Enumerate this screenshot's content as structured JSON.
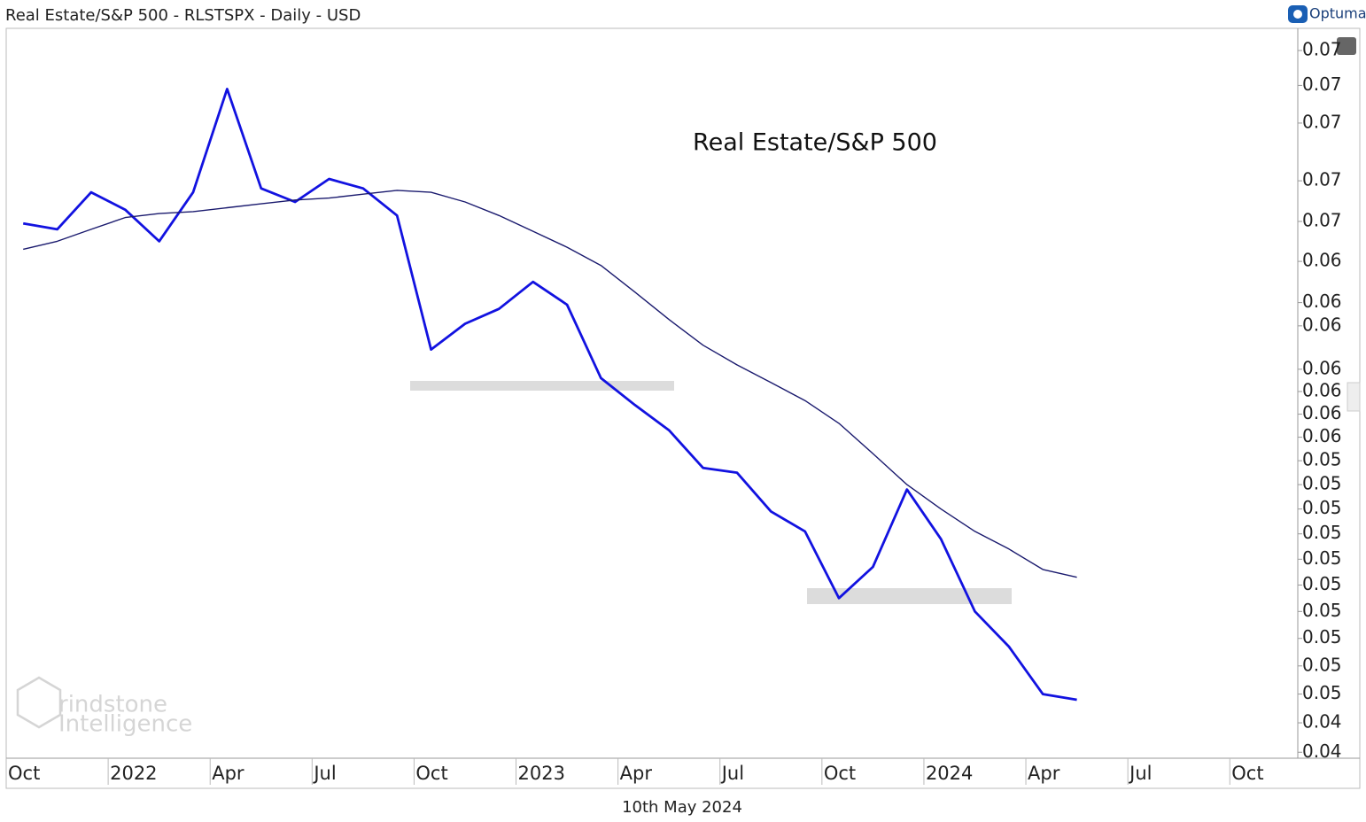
{
  "header": {
    "title": "Real Estate/S&P 500 - RLSTSPX - Daily - USD",
    "brand": "Optuma"
  },
  "footer": {
    "date": "10th May 2024"
  },
  "watermark": {
    "line1": "rindstone",
    "line2": "Intelligence"
  },
  "chart_data": {
    "type": "line",
    "annotation": "Real Estate/S&P 500",
    "log_scale": true,
    "grid": false,
    "x": [
      "2021-10",
      "2021-11",
      "2021-12",
      "2022-01",
      "2022-02",
      "2022-03",
      "2022-04",
      "2022-05",
      "2022-06",
      "2022-07",
      "2022-08",
      "2022-09",
      "2022-10",
      "2022-11",
      "2022-12",
      "2023-01",
      "2023-02",
      "2023-03",
      "2023-04",
      "2023-05",
      "2023-06",
      "2023-07",
      "2023-08",
      "2023-09",
      "2023-10",
      "2023-11",
      "2023-12",
      "2024-01",
      "2024-02",
      "2024-03",
      "2024-04",
      "2024-05"
    ],
    "series": [
      {
        "color": "#1212e0",
        "values": [
          0.065,
          0.0647,
          0.0666,
          0.0657,
          0.0641,
          0.0666,
          0.0722,
          0.0668,
          0.0661,
          0.0673,
          0.0668,
          0.0654,
          0.0589,
          0.0601,
          0.0608,
          0.0621,
          0.061,
          0.0576,
          0.0564,
          0.0553,
          0.0537,
          0.0535,
          0.0519,
          0.0511,
          0.0485,
          0.0497,
          0.0528,
          0.0508,
          0.048,
          0.0467,
          0.045,
          0.0448
        ]
      },
      {
        "color": "#1a1a6e",
        "values": [
          0.0637,
          0.0641,
          0.0647,
          0.0653,
          0.0655,
          0.0656,
          0.0658,
          0.066,
          0.0662,
          0.0663,
          0.0665,
          0.0667,
          0.0666,
          0.0661,
          0.0654,
          0.0646,
          0.0638,
          0.0629,
          0.0616,
          0.0603,
          0.0591,
          0.0582,
          0.0574,
          0.0566,
          0.0556,
          0.0543,
          0.053,
          0.052,
          0.0511,
          0.0504,
          0.0496,
          0.0493
        ]
      }
    ],
    "xlim": [
      "2021-10",
      "2024-12"
    ],
    "xticks": [
      {
        "value": "2021-10",
        "label": "Oct"
      },
      {
        "value": "2022-01",
        "label": "2022"
      },
      {
        "value": "2022-04",
        "label": "Apr"
      },
      {
        "value": "2022-07",
        "label": "Jul"
      },
      {
        "value": "2022-10",
        "label": "Oct"
      },
      {
        "value": "2023-01",
        "label": "2023"
      },
      {
        "value": "2023-04",
        "label": "Apr"
      },
      {
        "value": "2023-07",
        "label": "Jul"
      },
      {
        "value": "2023-10",
        "label": "Oct"
      },
      {
        "value": "2024-01",
        "label": "2024"
      },
      {
        "value": "2024-04",
        "label": "Apr"
      },
      {
        "value": "2024-07",
        "label": "Jul"
      },
      {
        "value": "2024-10",
        "label": "Oct"
      }
    ],
    "ylim": [
      0.0428,
      0.0757
    ],
    "yticks": [
      {
        "value": 0.043,
        "label": "0.04"
      },
      {
        "value": 0.044,
        "label": "0.04"
      },
      {
        "value": 0.045,
        "label": "0.05"
      },
      {
        "value": 0.046,
        "label": "0.05"
      },
      {
        "value": 0.047,
        "label": "0.05"
      },
      {
        "value": 0.048,
        "label": "0.05"
      },
      {
        "value": 0.049,
        "label": "0.05"
      },
      {
        "value": 0.05,
        "label": "0.05"
      },
      {
        "value": 0.051,
        "label": "0.05"
      },
      {
        "value": 0.052,
        "label": "0.05"
      },
      {
        "value": 0.053,
        "label": "0.05"
      },
      {
        "value": 0.054,
        "label": "0.05"
      },
      {
        "value": 0.055,
        "label": "0.06"
      },
      {
        "value": 0.056,
        "label": "0.06"
      },
      {
        "value": 0.057,
        "label": "0.06"
      },
      {
        "value": 0.058,
        "label": "0.06"
      },
      {
        "value": 0.06,
        "label": "0.06"
      },
      {
        "value": 0.0611,
        "label": "0.06"
      },
      {
        "value": 0.0631,
        "label": "0.06"
      },
      {
        "value": 0.0651,
        "label": "0.07"
      },
      {
        "value": 0.0672,
        "label": "0.07"
      },
      {
        "value": 0.0703,
        "label": "0.07"
      },
      {
        "value": 0.0724,
        "label": "0.07"
      },
      {
        "value": 0.0744,
        "label": "0.07"
      }
    ]
  }
}
